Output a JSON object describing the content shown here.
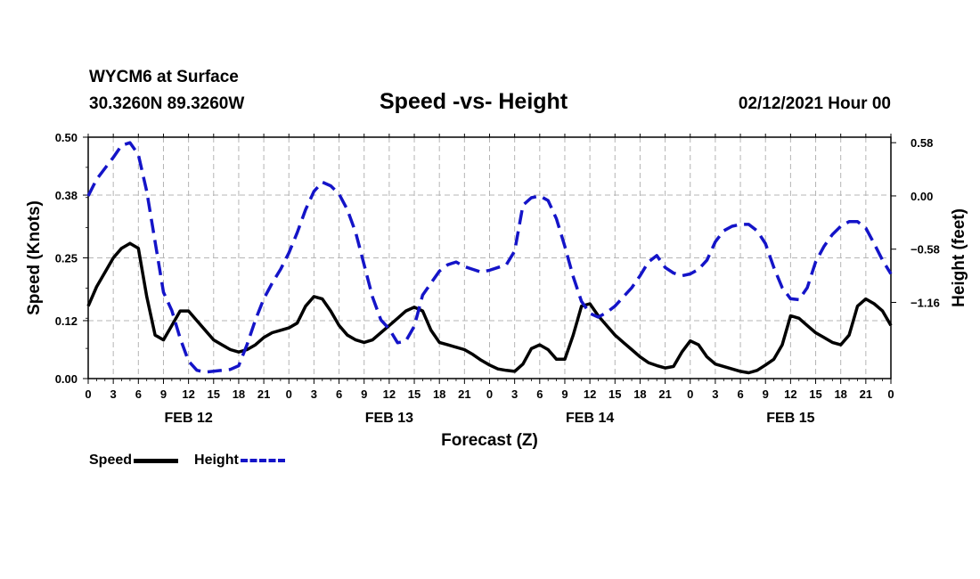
{
  "header": {
    "station": "WYCM6 at Surface",
    "coords": "30.3260N 89.3260W",
    "title": "Speed -vs- Height",
    "date_hour": "02/12/2021 Hour 00"
  },
  "legend": {
    "items": [
      {
        "label": "Speed",
        "color": "#000000",
        "style": "solid"
      },
      {
        "label": "Height",
        "color": "#1414c8",
        "style": "dashed"
      }
    ]
  },
  "chart_data": {
    "type": "line",
    "title": "Speed -vs- Height",
    "xlabel": "Forecast (Z)",
    "ylabel": "Speed (Knots)",
    "y2label": "Height (feet)",
    "grid": true,
    "x_range": [
      0,
      96
    ],
    "x_tick_labels": [
      "0",
      "3",
      "6",
      "9",
      "12",
      "15",
      "18",
      "21",
      "0",
      "3",
      "6",
      "9",
      "12",
      "15",
      "18",
      "21",
      "0",
      "3",
      "6",
      "9",
      "12",
      "15",
      "18",
      "21",
      "0",
      "3",
      "6",
      "9",
      "12",
      "15",
      "18",
      "21",
      "0"
    ],
    "day_labels": [
      {
        "hour": 12,
        "label": "FEB 12"
      },
      {
        "hour": 36,
        "label": "FEB 13"
      },
      {
        "hour": 60,
        "label": "FEB 14"
      },
      {
        "hour": 84,
        "label": "FEB 15"
      }
    ],
    "y_left": {
      "range": [
        0,
        0.5
      ],
      "ticks": [
        0,
        0.12,
        0.25,
        0.38,
        0.5
      ],
      "tick_labels": [
        "0.00",
        "0.12",
        "0.25",
        "0.38",
        "0.50"
      ]
    },
    "y_right": {
      "range": [
        -1.99,
        0.64
      ],
      "ticks": [
        0.58,
        0.0,
        -0.58,
        -1.16
      ],
      "tick_labels": [
        "0.58",
        "0.00",
        "−0.58",
        "−1.16"
      ]
    },
    "series": [
      {
        "name": "Speed",
        "axis": "left",
        "color": "#000000",
        "dash": "solid",
        "points": [
          [
            0,
            0.15
          ],
          [
            1,
            0.19
          ],
          [
            2,
            0.22
          ],
          [
            3,
            0.25
          ],
          [
            4,
            0.27
          ],
          [
            5,
            0.28
          ],
          [
            6,
            0.27
          ],
          [
            7,
            0.17
          ],
          [
            8,
            0.09
          ],
          [
            9,
            0.08
          ],
          [
            10,
            0.11
          ],
          [
            11,
            0.14
          ],
          [
            12,
            0.14
          ],
          [
            13,
            0.12
          ],
          [
            14,
            0.1
          ],
          [
            15,
            0.08
          ],
          [
            16,
            0.07
          ],
          [
            17,
            0.06
          ],
          [
            18,
            0.055
          ],
          [
            19,
            0.06
          ],
          [
            20,
            0.07
          ],
          [
            21,
            0.085
          ],
          [
            22,
            0.095
          ],
          [
            23,
            0.1
          ],
          [
            24,
            0.105
          ],
          [
            25,
            0.115
          ],
          [
            26,
            0.15
          ],
          [
            27,
            0.17
          ],
          [
            28,
            0.165
          ],
          [
            29,
            0.14
          ],
          [
            30,
            0.11
          ],
          [
            31,
            0.09
          ],
          [
            32,
            0.08
          ],
          [
            33,
            0.075
          ],
          [
            34,
            0.08
          ],
          [
            35,
            0.095
          ],
          [
            36,
            0.11
          ],
          [
            37,
            0.125
          ],
          [
            38,
            0.14
          ],
          [
            39,
            0.148
          ],
          [
            40,
            0.14
          ],
          [
            41,
            0.1
          ],
          [
            42,
            0.075
          ],
          [
            43,
            0.07
          ],
          [
            44,
            0.065
          ],
          [
            45,
            0.06
          ],
          [
            46,
            0.05
          ],
          [
            47,
            0.038
          ],
          [
            48,
            0.028
          ],
          [
            49,
            0.02
          ],
          [
            50,
            0.017
          ],
          [
            51,
            0.015
          ],
          [
            52,
            0.03
          ],
          [
            53,
            0.062
          ],
          [
            54,
            0.07
          ],
          [
            55,
            0.06
          ],
          [
            56,
            0.04
          ],
          [
            57,
            0.04
          ],
          [
            58,
            0.09
          ],
          [
            59,
            0.15
          ],
          [
            60,
            0.155
          ],
          [
            61,
            0.13
          ],
          [
            62,
            0.11
          ],
          [
            63,
            0.09
          ],
          [
            64,
            0.075
          ],
          [
            65,
            0.06
          ],
          [
            66,
            0.045
          ],
          [
            67,
            0.033
          ],
          [
            68,
            0.027
          ],
          [
            69,
            0.022
          ],
          [
            70,
            0.025
          ],
          [
            71,
            0.055
          ],
          [
            72,
            0.078
          ],
          [
            73,
            0.07
          ],
          [
            74,
            0.045
          ],
          [
            75,
            0.03
          ],
          [
            76,
            0.025
          ],
          [
            77,
            0.02
          ],
          [
            78,
            0.015
          ],
          [
            79,
            0.012
          ],
          [
            80,
            0.017
          ],
          [
            81,
            0.028
          ],
          [
            82,
            0.04
          ],
          [
            83,
            0.07
          ],
          [
            84,
            0.13
          ],
          [
            85,
            0.125
          ],
          [
            86,
            0.11
          ],
          [
            87,
            0.095
          ],
          [
            88,
            0.085
          ],
          [
            89,
            0.075
          ],
          [
            90,
            0.07
          ],
          [
            91,
            0.09
          ],
          [
            92,
            0.15
          ],
          [
            93,
            0.165
          ],
          [
            94,
            0.155
          ],
          [
            95,
            0.14
          ],
          [
            96,
            0.11
          ]
        ]
      },
      {
        "name": "Height",
        "axis": "right",
        "color": "#1414c8",
        "dash": "dashed",
        "points": [
          [
            0,
            0.0
          ],
          [
            1,
            0.18
          ],
          [
            2,
            0.3
          ],
          [
            3,
            0.42
          ],
          [
            4,
            0.55
          ],
          [
            5,
            0.58
          ],
          [
            6,
            0.45
          ],
          [
            7,
            0.05
          ],
          [
            8,
            -0.5
          ],
          [
            9,
            -1.05
          ],
          [
            10,
            -1.25
          ],
          [
            11,
            -1.55
          ],
          [
            12,
            -1.8
          ],
          [
            13,
            -1.9
          ],
          [
            14,
            -1.92
          ],
          [
            15,
            -1.91
          ],
          [
            16,
            -1.9
          ],
          [
            17,
            -1.89
          ],
          [
            18,
            -1.85
          ],
          [
            19,
            -1.62
          ],
          [
            20,
            -1.35
          ],
          [
            21,
            -1.12
          ],
          [
            22,
            -0.95
          ],
          [
            23,
            -0.8
          ],
          [
            24,
            -0.62
          ],
          [
            25,
            -0.4
          ],
          [
            26,
            -0.15
          ],
          [
            27,
            0.05
          ],
          [
            28,
            0.15
          ],
          [
            29,
            0.11
          ],
          [
            30,
            0.02
          ],
          [
            31,
            -0.15
          ],
          [
            32,
            -0.4
          ],
          [
            33,
            -0.75
          ],
          [
            34,
            -1.1
          ],
          [
            35,
            -1.35
          ],
          [
            36,
            -1.45
          ],
          [
            37,
            -1.6
          ],
          [
            38,
            -1.58
          ],
          [
            39,
            -1.42
          ],
          [
            40,
            -1.08
          ],
          [
            41,
            -0.95
          ],
          [
            42,
            -0.82
          ],
          [
            43,
            -0.75
          ],
          [
            44,
            -0.72
          ],
          [
            45,
            -0.77
          ],
          [
            46,
            -0.8
          ],
          [
            47,
            -0.83
          ],
          [
            48,
            -0.81
          ],
          [
            49,
            -0.78
          ],
          [
            50,
            -0.75
          ],
          [
            51,
            -0.6
          ],
          [
            52,
            -0.1
          ],
          [
            53,
            -0.02
          ],
          [
            54,
            0.0
          ],
          [
            55,
            -0.05
          ],
          [
            56,
            -0.25
          ],
          [
            57,
            -0.55
          ],
          [
            58,
            -0.88
          ],
          [
            59,
            -1.15
          ],
          [
            60,
            -1.28
          ],
          [
            61,
            -1.32
          ],
          [
            62,
            -1.27
          ],
          [
            63,
            -1.2
          ],
          [
            64,
            -1.1
          ],
          [
            65,
            -1.0
          ],
          [
            66,
            -0.87
          ],
          [
            67,
            -0.72
          ],
          [
            68,
            -0.65
          ],
          [
            69,
            -0.78
          ],
          [
            70,
            -0.84
          ],
          [
            71,
            -0.87
          ],
          [
            72,
            -0.85
          ],
          [
            73,
            -0.8
          ],
          [
            74,
            -0.7
          ],
          [
            75,
            -0.5
          ],
          [
            76,
            -0.38
          ],
          [
            77,
            -0.33
          ],
          [
            78,
            -0.31
          ],
          [
            79,
            -0.31
          ],
          [
            80,
            -0.38
          ],
          [
            81,
            -0.52
          ],
          [
            82,
            -0.78
          ],
          [
            83,
            -1.0
          ],
          [
            84,
            -1.12
          ],
          [
            85,
            -1.13
          ],
          [
            86,
            -1.0
          ],
          [
            87,
            -0.72
          ],
          [
            88,
            -0.55
          ],
          [
            89,
            -0.42
          ],
          [
            90,
            -0.33
          ],
          [
            91,
            -0.28
          ],
          [
            92,
            -0.28
          ],
          [
            93,
            -0.35
          ],
          [
            94,
            -0.52
          ],
          [
            95,
            -0.7
          ],
          [
            96,
            -0.85
          ]
        ]
      }
    ]
  }
}
